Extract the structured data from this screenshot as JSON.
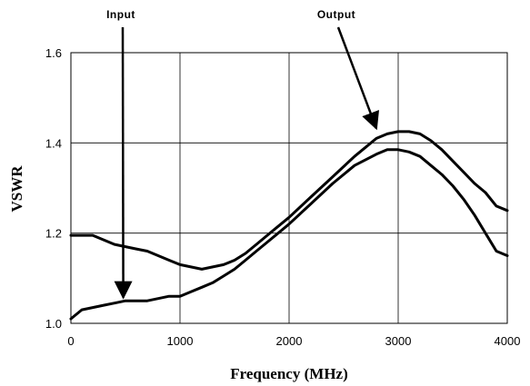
{
  "chart_data": {
    "type": "line",
    "xlabel": "Frequency (MHz)",
    "ylabel": "VSWR",
    "xlim": [
      0,
      4000
    ],
    "ylim": [
      1.0,
      1.6
    ],
    "x_ticks": [
      "0",
      "1000",
      "2000",
      "3000",
      "4000"
    ],
    "y_ticks": [
      "1.0",
      "1.2",
      "1.4",
      "1.6"
    ],
    "grid": true,
    "legend": "none",
    "series": [
      {
        "name": "Input",
        "x": [
          0,
          100,
          200,
          300,
          400,
          500,
          600,
          700,
          800,
          900,
          1000,
          1100,
          1200,
          1300,
          1400,
          1500,
          1600,
          1700,
          1800,
          1900,
          2000,
          2200,
          2400,
          2600,
          2800,
          2900,
          3000,
          3100,
          3200,
          3300,
          3400,
          3500,
          3600,
          3700,
          3800,
          3900,
          4000
        ],
        "y": [
          1.01,
          1.03,
          1.035,
          1.04,
          1.045,
          1.05,
          1.05,
          1.05,
          1.055,
          1.06,
          1.06,
          1.07,
          1.08,
          1.09,
          1.105,
          1.12,
          1.14,
          1.16,
          1.18,
          1.2,
          1.22,
          1.265,
          1.31,
          1.35,
          1.375,
          1.385,
          1.385,
          1.38,
          1.37,
          1.35,
          1.33,
          1.305,
          1.275,
          1.24,
          1.2,
          1.16,
          1.15
        ]
      },
      {
        "name": "Output",
        "x": [
          0,
          200,
          300,
          400,
          500,
          600,
          700,
          800,
          900,
          1000,
          1100,
          1200,
          1300,
          1400,
          1500,
          1600,
          1700,
          1800,
          1900,
          2000,
          2200,
          2400,
          2600,
          2700,
          2800,
          2900,
          3000,
          3100,
          3200,
          3300,
          3400,
          3500,
          3600,
          3700,
          3800,
          3900,
          4000
        ],
        "y": [
          1.195,
          1.195,
          1.185,
          1.175,
          1.17,
          1.165,
          1.16,
          1.15,
          1.14,
          1.13,
          1.125,
          1.12,
          1.125,
          1.13,
          1.14,
          1.155,
          1.175,
          1.195,
          1.215,
          1.235,
          1.28,
          1.325,
          1.37,
          1.39,
          1.41,
          1.42,
          1.425,
          1.425,
          1.42,
          1.405,
          1.385,
          1.36,
          1.335,
          1.31,
          1.29,
          1.26,
          1.25
        ]
      }
    ],
    "annotations": [
      {
        "text": "Input",
        "target_x": 480,
        "target_y": 1.045
      },
      {
        "text": "Output",
        "target_x": 2800,
        "target_y": 1.42
      }
    ]
  }
}
